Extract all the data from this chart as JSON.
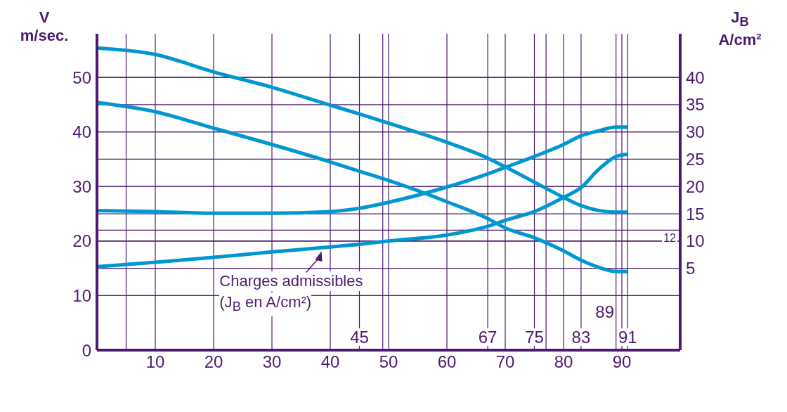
{
  "chart_data": {
    "type": "line",
    "xlabel": null,
    "ylabel": "V m/sec.",
    "y2label": "J$_{B}$ A/cm²",
    "annotations": [
      "Charges admissibles",
      "(J$_{B}$ en A/cm²)"
    ],
    "x": [
      0,
      10,
      20,
      30,
      40,
      45,
      50,
      60,
      67,
      70,
      75,
      80,
      83,
      86,
      89,
      91
    ],
    "series": [
      {
        "color": "#0096d2",
        "values": [
          55.4,
          54.2,
          51.0,
          48.2,
          44.9,
          43.3,
          41.6,
          38.1,
          35.2,
          33.6,
          30.8,
          28.0,
          26.5,
          25.6,
          25.3,
          25.3
        ]
      },
      {
        "color": "#0096d2",
        "values": [
          45.4,
          43.7,
          40.7,
          37.7,
          34.5,
          32.8,
          31.1,
          27.2,
          24.1,
          22.4,
          20.6,
          18.2,
          16.5,
          15.2,
          14.4,
          14.4
        ]
      },
      {
        "color": "#0096d2",
        "axis": "y2",
        "values": [
          15.6,
          15.4,
          15.1,
          15.1,
          15.4,
          16.0,
          17.1,
          19.9,
          22.3,
          23.5,
          25.5,
          27.7,
          29.3,
          30.2,
          30.9,
          30.9
        ]
      },
      {
        "color": "#0096d2",
        "axis": "y2",
        "values": [
          5.3,
          6.1,
          7.0,
          8.0,
          8.9,
          9.4,
          10.0,
          11.1,
          12.7,
          13.8,
          15.4,
          18.0,
          19.8,
          23.1,
          25.5,
          25.9
        ]
      }
    ],
    "xlim": [
      0,
      100
    ],
    "xticks": [
      10,
      20,
      30,
      40,
      50,
      60,
      70,
      80,
      90
    ],
    "ylim": [
      0,
      58
    ],
    "yticks": [
      0,
      10,
      20,
      30,
      40,
      50
    ],
    "y2lim": [
      -10,
      48
    ],
    "y2ticks": [
      5,
      10,
      15,
      20,
      25,
      30,
      35,
      40
    ],
    "ref_lines": [
      {
        "axis": "x",
        "value": 5,
        "label": null
      },
      {
        "axis": "x",
        "value": 45,
        "label": "45"
      },
      {
        "axis": "x",
        "value": 49,
        "label": null
      },
      {
        "axis": "x",
        "value": 67,
        "label": "67"
      },
      {
        "axis": "x",
        "value": 75,
        "label": "75"
      },
      {
        "axis": "x",
        "value": 77,
        "label": null
      },
      {
        "axis": "x",
        "value": 83,
        "label": "83"
      },
      {
        "axis": "x",
        "value": 89,
        "label": "89"
      },
      {
        "axis": "x",
        "value": 91,
        "label": "91"
      },
      {
        "axis": "y2",
        "value": 12,
        "label": "12"
      }
    ],
    "grid": true,
    "marker": "none",
    "line_style": "solid"
  }
}
